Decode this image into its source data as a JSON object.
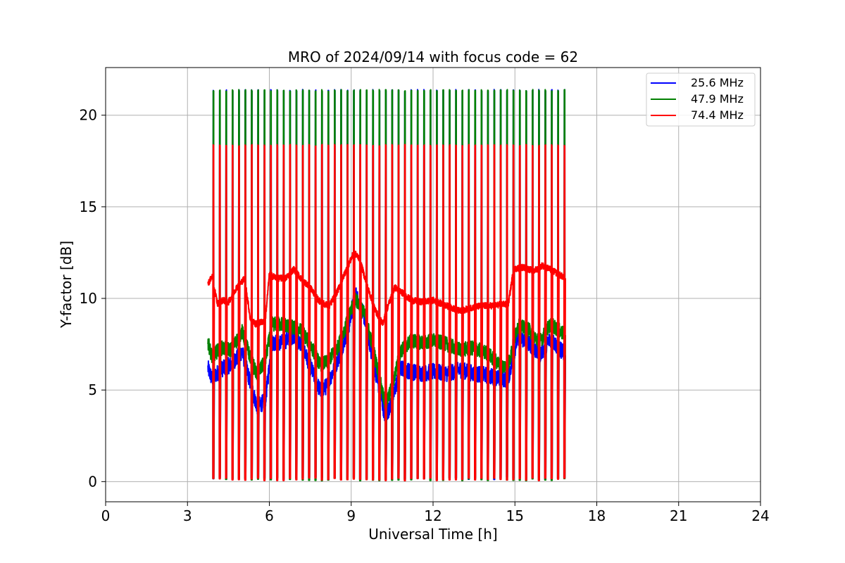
{
  "chart_data": {
    "type": "line",
    "title": "MRO of 2024/09/14 with focus code = 62",
    "xlabel": "Universal Time [h]",
    "ylabel": "Y-factor [dB]",
    "xlim": [
      0,
      24
    ],
    "ylim": [
      -1.1,
      22.6
    ],
    "xticks": [
      0,
      3,
      6,
      9,
      12,
      15,
      18,
      21,
      24
    ],
    "yticks": [
      0,
      5,
      10,
      15,
      20
    ],
    "grid": true,
    "legend_position": "top-right",
    "data_range_hours": [
      3.75,
      16.85
    ],
    "spike_count": 56,
    "series": [
      {
        "name": "25.6 MHz",
        "color": "#0000ff",
        "spike_peak": 21.4,
        "spike_trough": 0.1,
        "baseline_x": [
          3.75,
          3.9,
          4.2,
          4.6,
          5.0,
          5.3,
          5.55,
          5.85,
          6.1,
          6.5,
          6.9,
          7.2,
          7.5,
          7.85,
          8.1,
          8.5,
          8.9,
          9.15,
          9.5,
          9.8,
          10.1,
          10.25,
          10.5,
          10.8,
          11.2,
          11.6,
          12.0,
          12.5,
          13.0,
          13.5,
          14.0,
          14.5,
          14.75,
          15.1,
          15.5,
          15.9,
          16.3,
          16.85
        ],
        "baseline_y": [
          6.2,
          5.6,
          6.1,
          6.4,
          7.1,
          5.4,
          4.1,
          4.4,
          7.6,
          7.6,
          8.0,
          7.4,
          6.3,
          5.0,
          5.2,
          6.6,
          8.4,
          10.3,
          8.9,
          6.6,
          4.6,
          3.5,
          4.4,
          6.2,
          6.0,
          5.9,
          6.0,
          5.9,
          6.1,
          5.9,
          5.8,
          5.6,
          5.6,
          7.9,
          7.6,
          6.9,
          7.8,
          6.9
        ]
      },
      {
        "name": "47.9 MHz",
        "color": "#008000",
        "spike_peak": 21.4,
        "spike_trough": 0.05,
        "baseline_x": [
          3.75,
          3.9,
          4.2,
          4.6,
          5.0,
          5.3,
          5.55,
          5.85,
          6.1,
          6.5,
          6.9,
          7.2,
          7.5,
          7.85,
          8.1,
          8.5,
          8.9,
          9.15,
          9.5,
          9.8,
          10.1,
          10.25,
          10.5,
          10.8,
          11.2,
          11.6,
          12.0,
          12.5,
          13.0,
          13.5,
          14.0,
          14.5,
          14.75,
          15.1,
          15.5,
          15.9,
          16.3,
          16.85
        ],
        "baseline_y": [
          7.6,
          6.8,
          7.3,
          7.2,
          8.2,
          6.8,
          5.8,
          6.6,
          8.6,
          8.6,
          8.4,
          8.2,
          7.5,
          6.4,
          6.5,
          7.3,
          8.9,
          10.0,
          9.1,
          7.3,
          5.2,
          4.1,
          5.2,
          7.1,
          7.7,
          7.6,
          7.7,
          7.5,
          7.2,
          7.3,
          7.0,
          6.3,
          6.3,
          8.5,
          8.3,
          7.6,
          8.6,
          8.0
        ]
      },
      {
        "name": "74.4 MHz",
        "color": "#ff0000",
        "spike_peak": 18.4,
        "spike_trough": 0.05,
        "baseline_x": [
          3.75,
          3.9,
          4.1,
          4.3,
          4.5,
          4.8,
          5.1,
          5.3,
          5.5,
          5.7,
          5.85,
          6.0,
          6.3,
          6.6,
          6.9,
          7.2,
          7.5,
          7.8,
          8.0,
          8.2,
          8.5,
          8.8,
          9.1,
          9.3,
          9.6,
          9.9,
          10.15,
          10.35,
          10.6,
          10.8,
          11.2,
          11.6,
          12.0,
          12.5,
          13.0,
          13.4,
          13.8,
          14.2,
          14.6,
          14.75,
          14.95,
          15.3,
          15.7,
          16.0,
          16.4,
          16.85
        ],
        "baseline_y": [
          10.8,
          11.2,
          9.7,
          9.9,
          9.8,
          10.6,
          11.1,
          8.9,
          8.6,
          8.7,
          8.8,
          11.3,
          11.1,
          11.1,
          11.6,
          11.0,
          10.6,
          9.9,
          9.7,
          9.6,
          10.4,
          11.5,
          12.5,
          12.2,
          10.6,
          9.3,
          8.6,
          9.6,
          10.6,
          10.4,
          9.9,
          9.8,
          9.9,
          9.6,
          9.3,
          9.5,
          9.6,
          9.6,
          9.7,
          9.6,
          11.6,
          11.7,
          11.5,
          11.8,
          11.5,
          11.1
        ]
      }
    ]
  }
}
